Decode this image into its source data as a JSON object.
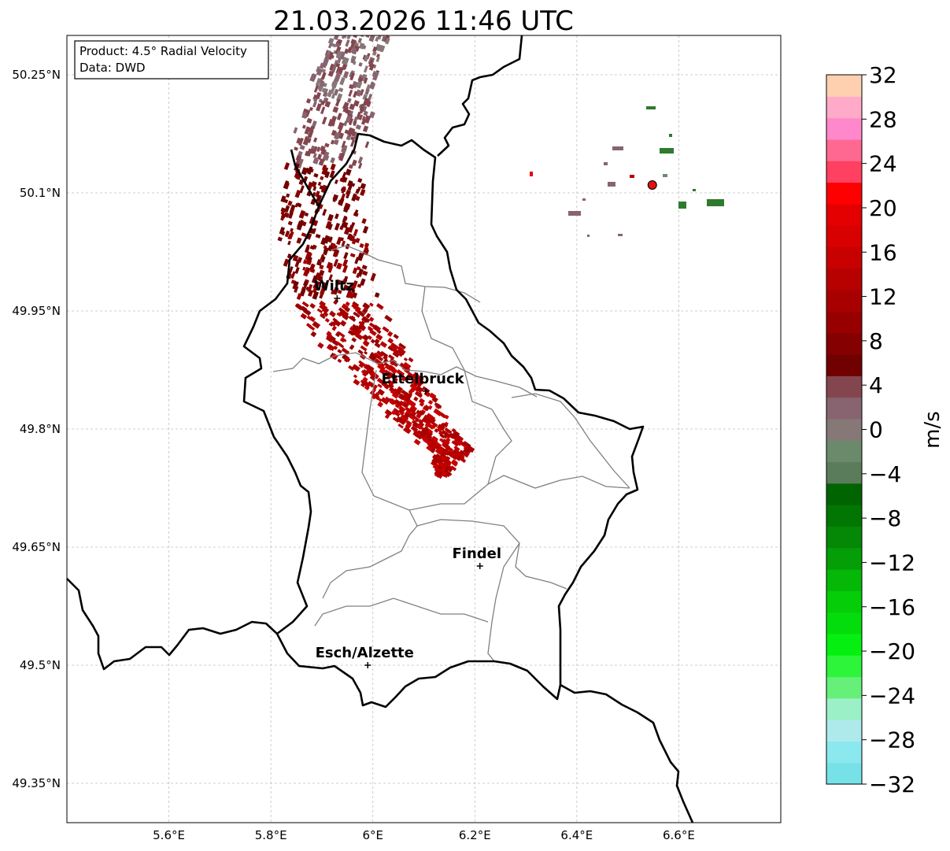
{
  "title": "21.03.2026 11:46 UTC",
  "info_box": {
    "product_line": "Product: 4.5° Radial Velocity",
    "data_line": "Data: DWD"
  },
  "map": {
    "lon_range": [
      5.4,
      6.8
    ],
    "lat_range": [
      49.3,
      50.3
    ],
    "lon_ticks": [
      {
        "value": 5.6,
        "label": "5.6°E"
      },
      {
        "value": 5.8,
        "label": "5.8°E"
      },
      {
        "value": 6.0,
        "label": "6°E"
      },
      {
        "value": 6.2,
        "label": "6.2°E"
      },
      {
        "value": 6.4,
        "label": "6.4°E"
      },
      {
        "value": 6.6,
        "label": "6.6°E"
      }
    ],
    "lat_ticks": [
      {
        "value": 50.25,
        "label": "50.25°N"
      },
      {
        "value": 50.1,
        "label": "50.1°N"
      },
      {
        "value": 49.95,
        "label": "49.95°N"
      },
      {
        "value": 49.8,
        "label": "49.8°N"
      },
      {
        "value": 49.65,
        "label": "49.65°N"
      },
      {
        "value": 49.5,
        "label": "49.5°N"
      },
      {
        "value": 49.35,
        "label": "49.35°N"
      }
    ],
    "cities": [
      {
        "name": "Wiltz",
        "lon": 5.93,
        "lat": 49.966
      },
      {
        "name": "Ettelbruck",
        "lon": 6.104,
        "lat": 49.848
      },
      {
        "name": "Findel",
        "lon": 6.21,
        "lat": 49.626
      },
      {
        "name": "Esch/Alzette",
        "lon": 5.99,
        "lat": 49.5
      }
    ],
    "radar_site": {
      "lon": 6.548,
      "lat": 50.11
    },
    "colors": {
      "border": "#000000",
      "canton": "#808080",
      "grid": "#c0c0c0",
      "radar_site": "#e01010"
    }
  },
  "colorbar": {
    "label": "m/s",
    "min": -32,
    "max": 32,
    "tick_values": [
      -32,
      -28,
      -24,
      -20,
      -16,
      -12,
      -8,
      -4,
      0,
      4,
      8,
      12,
      16,
      20,
      24,
      28,
      32
    ],
    "tick_labels": [
      "−32",
      "−28",
      "−24",
      "−20",
      "−16",
      "−12",
      "−8",
      "−4",
      "0",
      "4",
      "8",
      "12",
      "16",
      "20",
      "24",
      "28",
      "32"
    ],
    "colors": [
      "#76e2e8",
      "#8ae8ee",
      "#aeeaec",
      "#9cf0c8",
      "#66f07a",
      "#2df53a",
      "#05f010",
      "#04dd0c",
      "#05cd08",
      "#05b808",
      "#049e06",
      "#048805",
      "#027602",
      "#006400",
      "#5b7c5b",
      "#6b8a6b",
      "#867877",
      "#876470",
      "#84464e",
      "#710000",
      "#850000",
      "#980000",
      "#a80000",
      "#b70000",
      "#c80000",
      "#d80000",
      "#e40000",
      "#ff0000",
      "#ff4060",
      "#ff6890",
      "#ff88cc",
      "#ffaac8",
      "#ffd0b0"
    ]
  }
}
